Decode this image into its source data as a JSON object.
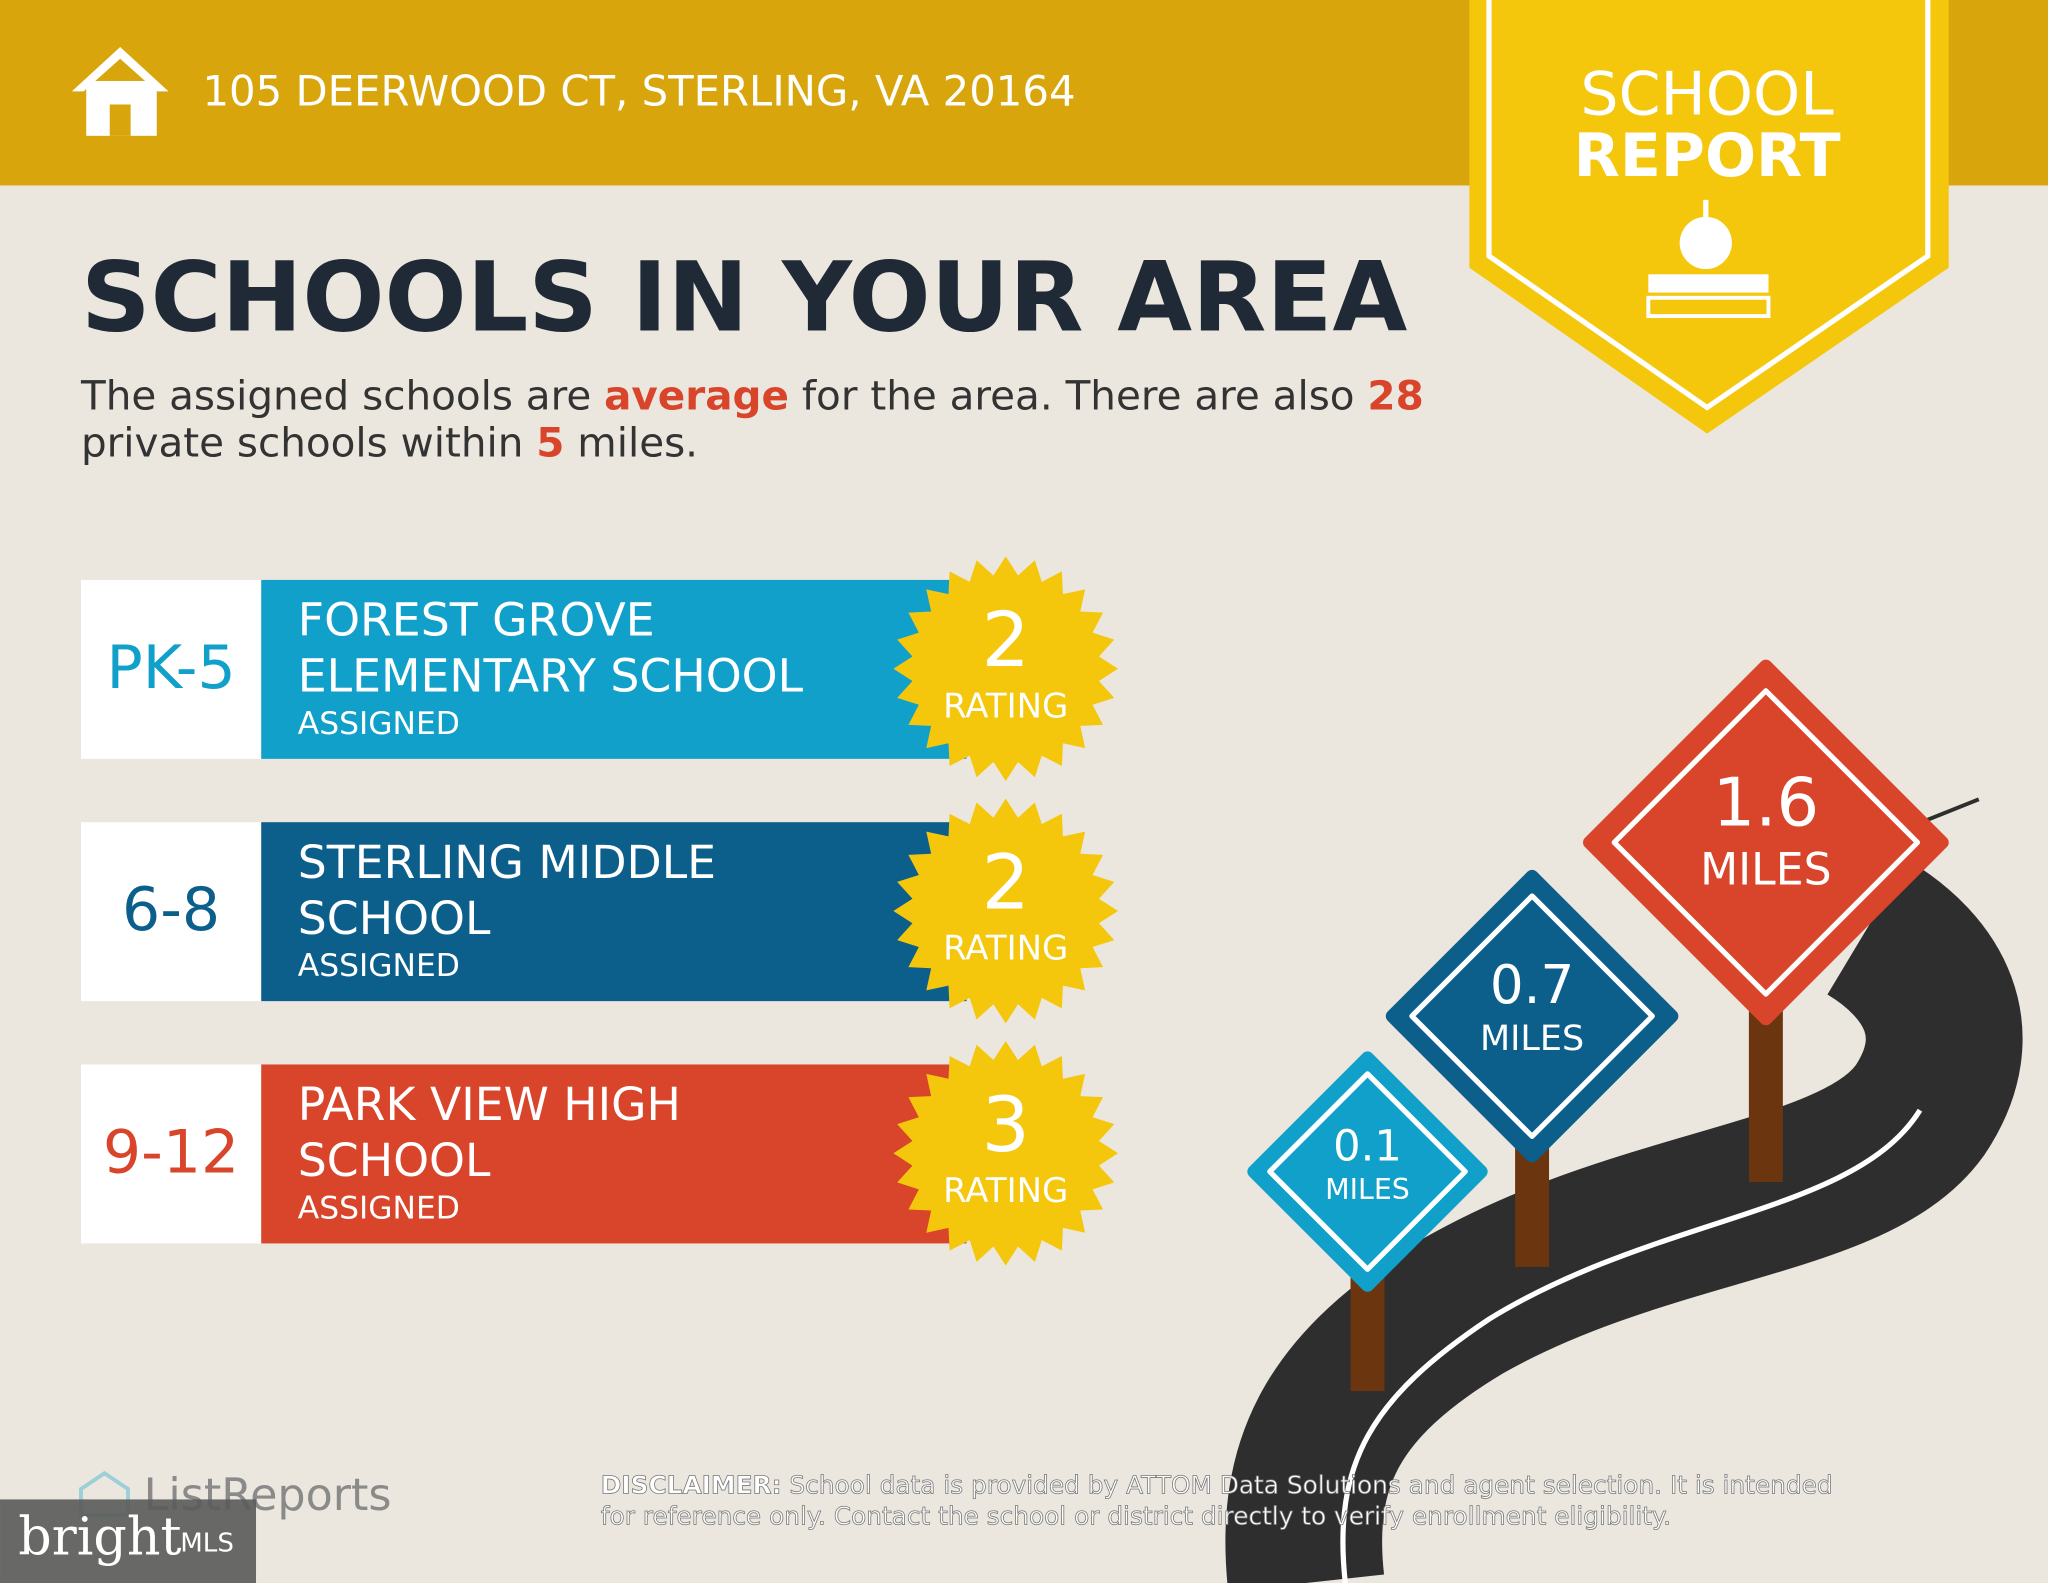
{
  "header": {
    "address": "105 DEERWOOD CT, STERLING, VA 20164"
  },
  "badge": {
    "line1": "SCHOOL",
    "line2": "REPORT"
  },
  "title": "SCHOOLS IN YOUR AREA",
  "description": {
    "lines": [
      [
        {
          "text": "The assigned schools are "
        },
        {
          "text": "average",
          "highlight": true
        },
        {
          "text": " for the area. There are also "
        },
        {
          "text": 28,
          "highlight": true
        }
      ],
      [
        {
          "text": "private schools within "
        },
        {
          "text": 5,
          "highlight": true
        },
        {
          "text": " miles."
        }
      ]
    ]
  },
  "schools": [
    {
      "grades": "PK-5",
      "name_lines": [
        "FOREST GROVE",
        "ELEMENTARY SCHOOL"
      ],
      "status": "ASSIGNED",
      "rating": 2,
      "rating_label": "RATING",
      "color": "#11a0c9"
    },
    {
      "grades": "6-8",
      "name_lines": [
        "STERLING MIDDLE",
        "SCHOOL"
      ],
      "status": "ASSIGNED",
      "rating": 2,
      "rating_label": "RATING",
      "color": "#0c5f8b"
    },
    {
      "grades": "9-12",
      "name_lines": [
        "PARK VIEW HIGH",
        "SCHOOL"
      ],
      "status": "ASSIGNED",
      "rating": 3,
      "rating_label": "RATING",
      "color": "#d8452a"
    }
  ],
  "signs": [
    {
      "distance": 1.6,
      "unit": "MILES",
      "color": "#d8452a"
    },
    {
      "distance": 0.7,
      "unit": "MILES",
      "color": "#0c5f8b"
    },
    {
      "distance": 0.1,
      "unit": "MILES",
      "color": "#11a0c9"
    }
  ],
  "footer": {
    "brand": "ListReports",
    "watermark": "bright",
    "watermark_suffix": "MLS",
    "disclaimer": {
      "label": "DISCLAIMER:",
      "lines": [
        " School data is provided by ATTOM Data Solutions and agent selection. It is intended",
        "for reference only. Contact the school or district directly to verify enrollment eligibility."
      ]
    }
  }
}
